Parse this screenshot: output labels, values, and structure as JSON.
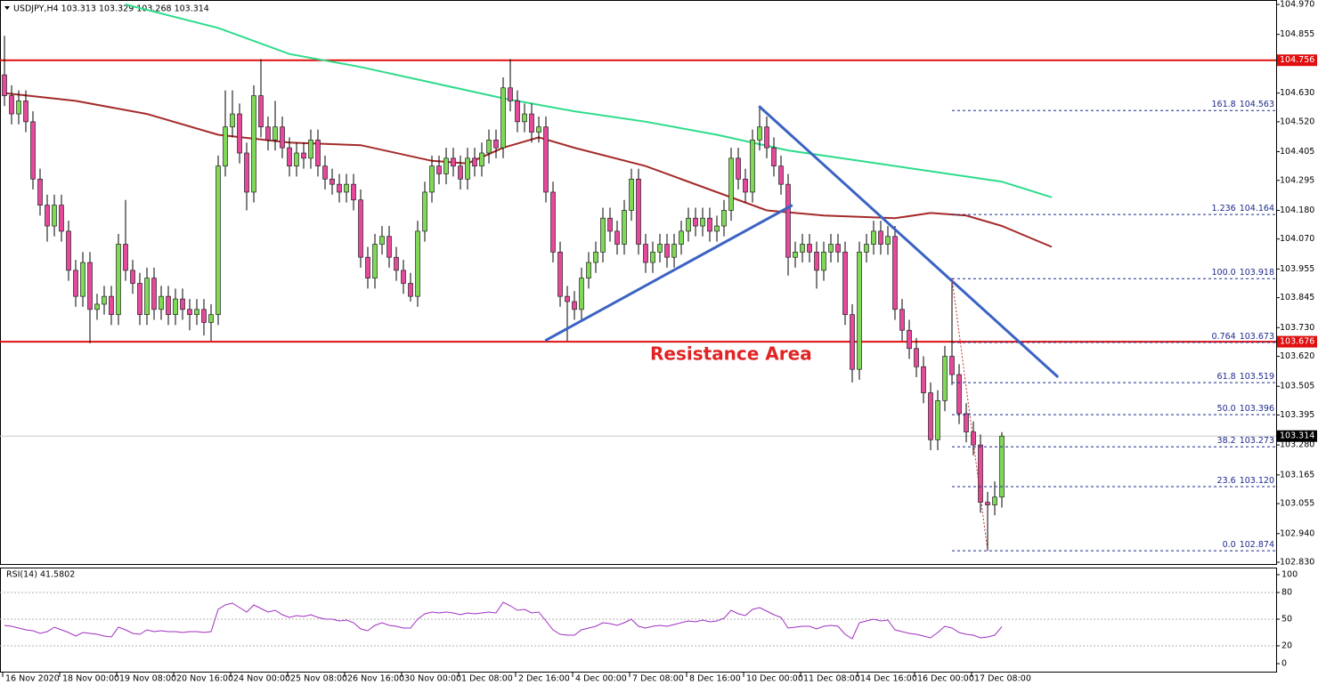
{
  "chart_data": [
    {
      "type": "candlestick",
      "title": "USDJPY,H4  103.313 103.329 103.268 103.314",
      "annotation": "Resistance Area",
      "up_color": "#7fd957",
      "down_color": "#e6489c",
      "categories": [
        "16 Nov 2020",
        null,
        null,
        null,
        null,
        null,
        null,
        null,
        "18 Nov 00:00",
        null,
        null,
        null,
        null,
        null,
        null,
        null,
        "19 Nov 08:00",
        null,
        null,
        null,
        null,
        null,
        null,
        null,
        "20 Nov 16:00",
        null,
        null,
        null,
        null,
        null,
        null,
        null,
        "24 Nov 00:00",
        null,
        null,
        null,
        null,
        null,
        null,
        null,
        "25 Nov 08:00",
        null,
        null,
        null,
        null,
        null,
        null,
        null,
        "26 Nov 16:00",
        null,
        null,
        null,
        null,
        null,
        null,
        null,
        "30 Nov 00:00",
        null,
        null,
        null,
        null,
        null,
        null,
        null,
        "1 Dec 08:00",
        null,
        null,
        null,
        null,
        null,
        null,
        null,
        "2 Dec 16:00",
        null,
        null,
        null,
        null,
        null,
        null,
        null,
        "4 Dec 00:00",
        null,
        null,
        null,
        null,
        null,
        null,
        null,
        "7 Dec 08:00",
        null,
        null,
        null,
        null,
        null,
        null,
        null,
        "8 Dec 16:00",
        null,
        null,
        null,
        null,
        null,
        null,
        null,
        "10 Dec 00:00",
        null,
        null,
        null,
        null,
        null,
        null,
        null,
        "11 Dec 08:00",
        null,
        null,
        null,
        null,
        null,
        null,
        null,
        "14 Dec 16:00",
        null,
        null,
        null,
        null,
        null,
        null,
        null,
        "16 Dec 00:00",
        null,
        null,
        null,
        null,
        null,
        null,
        null,
        "17 Dec 08:00",
        null,
        null,
        null,
        null
      ],
      "open": [
        104.7,
        104.62,
        104.55,
        104.6,
        104.52,
        104.3,
        104.2,
        104.12,
        104.2,
        104.1,
        103.95,
        103.85,
        103.98,
        103.8,
        103.82,
        103.85,
        103.78,
        104.05,
        103.95,
        103.9,
        103.78,
        103.92,
        103.8,
        103.85,
        103.78,
        103.84,
        103.8,
        103.78,
        103.8,
        103.75,
        103.78,
        104.35,
        104.5,
        104.55,
        104.4,
        104.25,
        104.62,
        104.5,
        104.45,
        104.5,
        104.42,
        104.35,
        104.4,
        104.38,
        104.45,
        104.35,
        104.3,
        104.28,
        104.25,
        104.28,
        104.22,
        104.0,
        103.92,
        104.05,
        104.08,
        104.0,
        103.95,
        103.9,
        103.85,
        104.1,
        104.25,
        104.35,
        104.32,
        104.38,
        104.35,
        104.3,
        104.38,
        104.35,
        104.4,
        104.45,
        104.42,
        104.65,
        104.6,
        104.52,
        104.55,
        104.48,
        104.5,
        104.25,
        104.02,
        103.85,
        103.83,
        103.8,
        103.92,
        103.98,
        104.02,
        104.15,
        104.1,
        104.05,
        104.18,
        104.3,
        104.05,
        103.98,
        104.02,
        104.05,
        104.0,
        104.05,
        104.1,
        104.15,
        104.12,
        104.15,
        104.1,
        104.12,
        104.18,
        104.38,
        104.3,
        104.25,
        104.45,
        104.5,
        104.42,
        104.35,
        104.28,
        104.0,
        104.02,
        104.05,
        104.02,
        103.95,
        104.02,
        104.05,
        104.02,
        103.78,
        103.57,
        104.02,
        104.05,
        104.1,
        104.05,
        104.08,
        103.8,
        103.72,
        103.65,
        103.58,
        103.48,
        103.3,
        103.45,
        103.62,
        103.55,
        103.4,
        103.33,
        103.28,
        103.06,
        103.05,
        103.08
      ],
      "high": [
        104.85,
        104.66,
        104.64,
        104.64,
        104.56,
        104.34,
        104.24,
        104.24,
        104.24,
        104.14,
        103.99,
        104.02,
        104.02,
        103.86,
        103.89,
        103.89,
        104.09,
        104.22,
        103.99,
        103.94,
        103.96,
        103.96,
        103.89,
        103.89,
        103.88,
        103.88,
        103.84,
        103.84,
        103.84,
        103.82,
        104.39,
        104.64,
        104.64,
        104.59,
        104.44,
        104.66,
        104.76,
        104.54,
        104.6,
        104.54,
        104.46,
        104.44,
        104.44,
        104.49,
        104.49,
        104.39,
        104.34,
        104.32,
        104.32,
        104.32,
        104.26,
        104.04,
        104.09,
        104.12,
        104.12,
        104.04,
        103.99,
        103.94,
        104.14,
        104.29,
        104.39,
        104.39,
        104.42,
        104.42,
        104.39,
        104.42,
        104.42,
        104.44,
        104.49,
        104.49,
        104.69,
        104.76,
        104.64,
        104.59,
        104.59,
        104.54,
        104.54,
        104.29,
        104.06,
        103.89,
        103.87,
        103.96,
        104.02,
        104.06,
        104.19,
        104.19,
        104.14,
        104.22,
        104.34,
        104.34,
        104.09,
        104.06,
        104.09,
        104.09,
        104.09,
        104.14,
        104.19,
        104.19,
        104.19,
        104.19,
        104.16,
        104.22,
        104.42,
        104.42,
        104.34,
        104.49,
        104.58,
        104.54,
        104.46,
        104.39,
        104.32,
        104.06,
        104.09,
        104.09,
        104.06,
        104.06,
        104.09,
        104.09,
        104.06,
        103.82,
        104.06,
        104.09,
        104.14,
        104.14,
        104.12,
        104.12,
        103.84,
        103.76,
        103.69,
        103.62,
        103.52,
        103.49,
        103.66,
        103.92,
        103.59,
        103.44,
        103.37,
        103.32,
        103.1,
        103.14,
        103.329
      ],
      "low": [
        104.58,
        104.51,
        104.51,
        104.48,
        104.26,
        104.16,
        104.06,
        104.08,
        104.06,
        103.91,
        103.81,
        103.81,
        103.67,
        103.76,
        103.78,
        103.74,
        103.74,
        103.91,
        103.86,
        103.74,
        103.74,
        103.76,
        103.76,
        103.74,
        103.74,
        103.76,
        103.72,
        103.74,
        103.7,
        103.68,
        103.74,
        104.31,
        104.46,
        104.36,
        104.18,
        104.21,
        104.46,
        104.41,
        104.41,
        104.38,
        104.31,
        104.31,
        104.34,
        104.34,
        104.31,
        104.26,
        104.24,
        104.21,
        104.21,
        104.18,
        103.96,
        103.88,
        103.88,
        104.01,
        103.96,
        103.91,
        103.86,
        103.83,
        103.81,
        104.06,
        104.21,
        104.28,
        104.28,
        104.31,
        104.26,
        104.26,
        104.31,
        104.31,
        104.36,
        104.38,
        104.38,
        104.56,
        104.48,
        104.48,
        104.44,
        104.44,
        104.21,
        103.98,
        103.81,
        103.68,
        103.76,
        103.76,
        103.88,
        103.94,
        103.98,
        104.06,
        104.01,
        104.01,
        104.14,
        104.01,
        103.94,
        103.94,
        103.98,
        103.96,
        103.96,
        104.01,
        104.06,
        104.08,
        104.08,
        104.06,
        104.06,
        104.08,
        104.14,
        104.26,
        104.21,
        104.21,
        104.41,
        104.38,
        104.31,
        104.24,
        103.93,
        103.96,
        103.98,
        103.98,
        103.88,
        103.91,
        103.98,
        103.98,
        103.74,
        103.52,
        103.53,
        103.98,
        104.01,
        104.01,
        104.01,
        103.76,
        103.68,
        103.61,
        103.54,
        103.44,
        103.26,
        103.26,
        103.41,
        103.51,
        103.36,
        103.29,
        103.24,
        103.02,
        102.874,
        103.01,
        103.04
      ],
      "close": [
        104.62,
        104.55,
        104.6,
        104.52,
        104.3,
        104.2,
        104.12,
        104.2,
        104.1,
        103.95,
        103.85,
        103.98,
        103.8,
        103.82,
        103.85,
        103.78,
        104.05,
        103.95,
        103.9,
        103.78,
        103.92,
        103.8,
        103.85,
        103.78,
        103.84,
        103.8,
        103.78,
        103.8,
        103.75,
        103.78,
        104.35,
        104.5,
        104.55,
        104.4,
        104.25,
        104.62,
        104.5,
        104.45,
        104.5,
        104.42,
        104.35,
        104.4,
        104.38,
        104.45,
        104.35,
        104.3,
        104.28,
        104.25,
        104.28,
        104.22,
        104.0,
        103.92,
        104.05,
        104.08,
        104.0,
        103.95,
        103.9,
        103.85,
        104.1,
        104.25,
        104.35,
        104.32,
        104.38,
        104.35,
        104.3,
        104.38,
        104.35,
        104.4,
        104.45,
        104.42,
        104.65,
        104.6,
        104.52,
        104.55,
        104.48,
        104.5,
        104.25,
        104.02,
        103.85,
        103.83,
        103.8,
        103.92,
        103.98,
        104.02,
        104.15,
        104.1,
        104.05,
        104.18,
        104.3,
        104.05,
        103.98,
        104.02,
        104.05,
        104.0,
        104.05,
        104.1,
        104.15,
        104.12,
        104.15,
        104.1,
        104.12,
        104.18,
        104.38,
        104.3,
        104.25,
        104.45,
        104.5,
        104.42,
        104.35,
        104.28,
        104.0,
        104.02,
        104.05,
        104.02,
        103.95,
        104.02,
        104.05,
        104.02,
        103.78,
        103.57,
        104.02,
        104.05,
        104.1,
        104.05,
        104.08,
        103.8,
        103.72,
        103.65,
        103.58,
        103.48,
        103.3,
        103.45,
        103.62,
        103.55,
        103.4,
        103.33,
        103.28,
        103.06,
        103.05,
        103.08,
        103.314
      ],
      "series": [
        {
          "color": "#a52a2a",
          "x": [
            0,
            10,
            20,
            30,
            40,
            50,
            60,
            65,
            70,
            75,
            80,
            90,
            100,
            107,
            115,
            125,
            130,
            135,
            140,
            147
          ],
          "values": [
            104.63,
            104.6,
            104.55,
            104.47,
            104.44,
            104.43,
            104.37,
            104.36,
            104.42,
            104.46,
            104.42,
            104.35,
            104.25,
            104.18,
            104.16,
            104.15,
            104.17,
            104.16,
            104.12,
            104.04
          ]
        },
        {
          "color": "#2edc8c",
          "x": [
            17,
            30,
            40,
            50,
            60,
            70,
            80,
            90,
            100,
            110,
            120,
            130,
            140,
            147
          ],
          "values": [
            104.97,
            104.88,
            104.78,
            104.73,
            104.67,
            104.61,
            104.56,
            104.52,
            104.47,
            104.41,
            104.37,
            104.33,
            104.29,
            104.23
          ]
        }
      ],
      "trendlines": [
        {
          "color": "#3b63c4",
          "x": [
            75.9,
            110.6
          ],
          "y": [
            103.68,
            104.2
          ]
        },
        {
          "color": "#3b63c4",
          "x": [
            105.9,
            147.9
          ],
          "y": [
            104.58,
            103.54
          ]
        }
      ],
      "hlines": [
        {
          "value": 104.756,
          "color": "#e01010"
        },
        {
          "value": 103.676,
          "color": "#e01010"
        }
      ],
      "last": 103.314,
      "fib": {
        "color": "#1c2a8c",
        "anchor_color": "#c03030",
        "x": [
          133,
          138
        ],
        "levels": [
          {
            "ratio": "161.8",
            "value": 104.563
          },
          {
            "ratio": "1.236",
            "value": 104.164
          },
          {
            "ratio": "100.0",
            "value": 103.918
          },
          {
            "ratio": "0.764",
            "value": 103.673
          },
          {
            "ratio": "61.8",
            "value": 103.519
          },
          {
            "ratio": "50.0",
            "value": 103.396
          },
          {
            "ratio": "38.2",
            "value": 103.273
          },
          {
            "ratio": "23.6",
            "value": {
              "value": 103.12,
              "label": "103.120"
            }
          },
          {
            "ratio": "0.0",
            "value": 102.874
          }
        ]
      },
      "ylim": [
        102.83,
        104.97
      ],
      "yticks": [
        {
          "value": 104.97,
          "label": "104.970"
        },
        104.855,
        {
          "value": 104.63,
          "label": "104.630"
        },
        {
          "value": 104.52,
          "label": "104.520"
        },
        104.405,
        104.295,
        {
          "value": 104.18,
          "label": "104.180"
        },
        {
          "value": 104.07,
          "label": "104.070"
        },
        103.955,
        103.845,
        {
          "value": 103.73,
          "label": "103.730"
        },
        {
          "value": 103.62,
          "label": "103.620"
        },
        103.505,
        103.395,
        {
          "value": 103.28,
          "label": "103.280"
        },
        103.165,
        103.055,
        {
          "value": 102.94,
          "label": "102.940"
        },
        {
          "value": 102.83,
          "label": "102.830"
        }
      ]
    },
    {
      "type": "line",
      "title": "RSI(14) 41.5802",
      "color": "#a030c0",
      "ylim": [
        0,
        100
      ],
      "yticks": [
        0,
        20,
        50,
        80,
        100
      ],
      "values": [
        43,
        42,
        40,
        38,
        37,
        34,
        36,
        41,
        38,
        35,
        31,
        35,
        34,
        33,
        31,
        30,
        41,
        38,
        34,
        33,
        38,
        36,
        37,
        36,
        36,
        35,
        36,
        36,
        35,
        36,
        61,
        66,
        68,
        63,
        58,
        66,
        62,
        58,
        60,
        55,
        52,
        54,
        53,
        55,
        52,
        50,
        50,
        48,
        49,
        46,
        39,
        37,
        43,
        46,
        43,
        42,
        40,
        40,
        50,
        56,
        58,
        57,
        58,
        57,
        55,
        57,
        56,
        57,
        58,
        57,
        69,
        65,
        60,
        61,
        57,
        58,
        48,
        38,
        33,
        32,
        32,
        38,
        40,
        42,
        46,
        45,
        43,
        46,
        50,
        42,
        40,
        42,
        43,
        42,
        44,
        46,
        48,
        47,
        49,
        47,
        48,
        51,
        60,
        56,
        54,
        61,
        63,
        59,
        55,
        52,
        40,
        41,
        42,
        42,
        39,
        42,
        43,
        42,
        33,
        28,
        46,
        48,
        50,
        48,
        49,
        38,
        36,
        34,
        33,
        31,
        29,
        35,
        42,
        40,
        35,
        33,
        32,
        29,
        30,
        32,
        41.5802
      ]
    }
  ]
}
